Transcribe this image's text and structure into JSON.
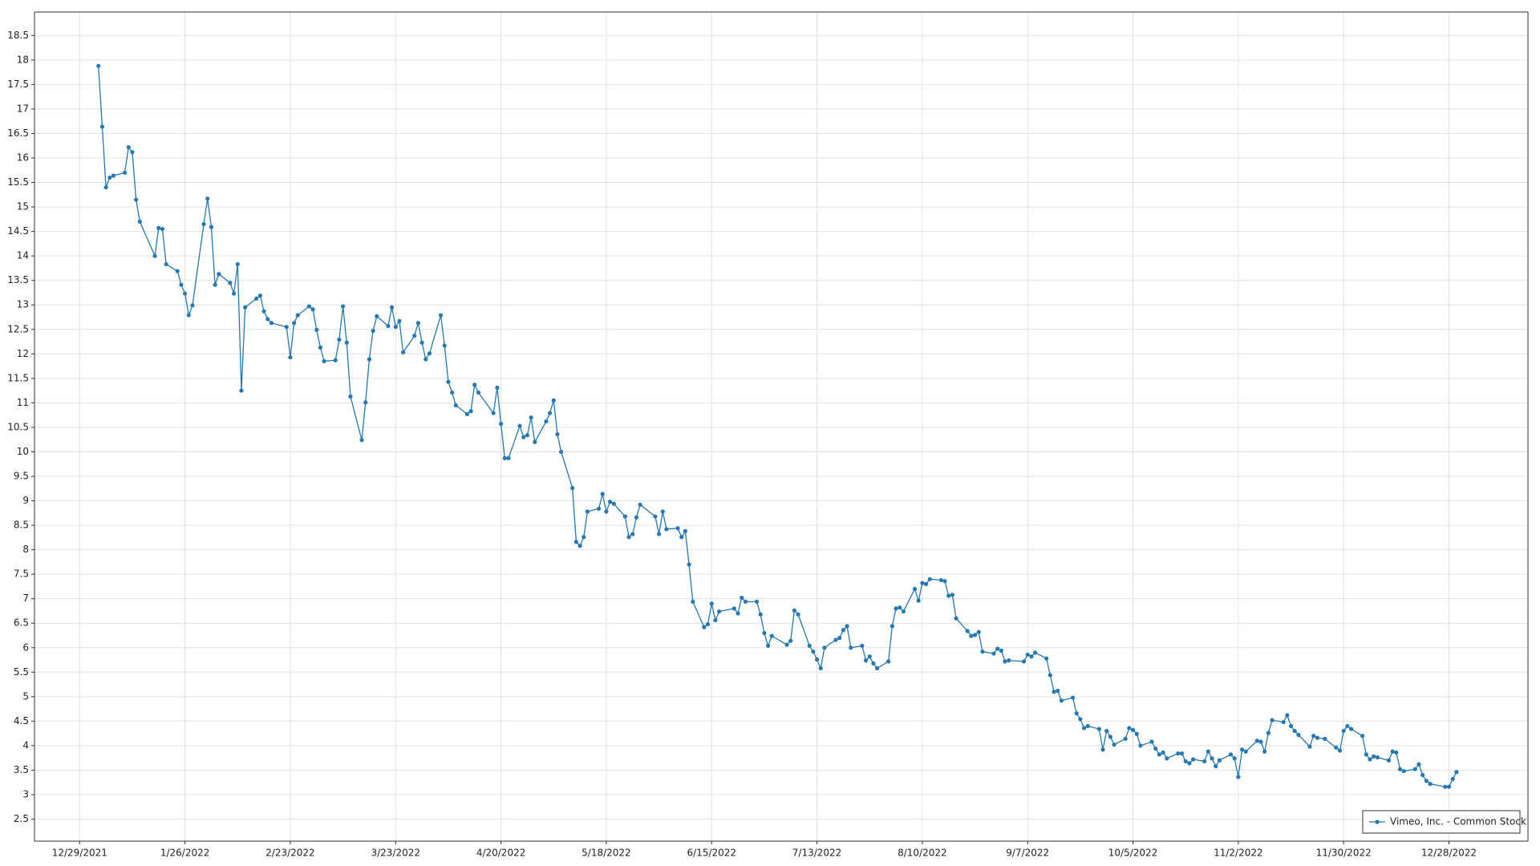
{
  "chart_data": {
    "type": "line",
    "x": [
      "1/3/2022",
      "1/4/2022",
      "1/5/2022",
      "1/6/2022",
      "1/7/2022",
      "1/10/2022",
      "1/11/2022",
      "1/12/2022",
      "1/13/2022",
      "1/14/2022",
      "1/18/2022",
      "1/19/2022",
      "1/20/2022",
      "1/21/2022",
      "1/24/2022",
      "1/25/2022",
      "1/26/2022",
      "1/27/2022",
      "1/28/2022",
      "1/31/2022",
      "2/1/2022",
      "2/2/2022",
      "2/3/2022",
      "2/4/2022",
      "2/7/2022",
      "2/8/2022",
      "2/9/2022",
      "2/10/2022",
      "2/11/2022",
      "2/14/2022",
      "2/15/2022",
      "2/16/2022",
      "2/17/2022",
      "2/18/2022",
      "2/22/2022",
      "2/23/2022",
      "2/24/2022",
      "2/25/2022",
      "2/28/2022",
      "3/1/2022",
      "3/2/2022",
      "3/3/2022",
      "3/4/2022",
      "3/7/2022",
      "3/8/2022",
      "3/9/2022",
      "3/10/2022",
      "3/11/2022",
      "3/14/2022",
      "3/15/2022",
      "3/16/2022",
      "3/17/2022",
      "3/18/2022",
      "3/21/2022",
      "3/22/2022",
      "3/23/2022",
      "3/24/2022",
      "3/25/2022",
      "3/28/2022",
      "3/29/2022",
      "3/30/2022",
      "3/31/2022",
      "4/1/2022",
      "4/4/2022",
      "4/5/2022",
      "4/6/2022",
      "4/7/2022",
      "4/8/2022",
      "4/11/2022",
      "4/12/2022",
      "4/13/2022",
      "4/14/2022",
      "4/18/2022",
      "4/19/2022",
      "4/20/2022",
      "4/21/2022",
      "4/22/2022",
      "4/25/2022",
      "4/26/2022",
      "4/27/2022",
      "4/28/2022",
      "4/29/2022",
      "5/2/2022",
      "5/3/2022",
      "5/4/2022",
      "5/5/2022",
      "5/6/2022",
      "5/9/2022",
      "5/10/2022",
      "5/11/2022",
      "5/12/2022",
      "5/13/2022",
      "5/16/2022",
      "5/17/2022",
      "5/18/2022",
      "5/19/2022",
      "5/20/2022",
      "5/23/2022",
      "5/24/2022",
      "5/25/2022",
      "5/26/2022",
      "5/27/2022",
      "5/31/2022",
      "6/1/2022",
      "6/2/2022",
      "6/3/2022",
      "6/6/2022",
      "6/7/2022",
      "6/8/2022",
      "6/9/2022",
      "6/10/2022",
      "6/13/2022",
      "6/14/2022",
      "6/15/2022",
      "6/16/2022",
      "6/17/2022",
      "6/21/2022",
      "6/22/2022",
      "6/23/2022",
      "6/24/2022",
      "6/27/2022",
      "6/28/2022",
      "6/29/2022",
      "6/30/2022",
      "7/1/2022",
      "7/5/2022",
      "7/6/2022",
      "7/7/2022",
      "7/8/2022",
      "7/11/2022",
      "7/12/2022",
      "7/13/2022",
      "7/14/2022",
      "7/15/2022",
      "7/18/2022",
      "7/19/2022",
      "7/20/2022",
      "7/21/2022",
      "7/22/2022",
      "7/25/2022",
      "7/26/2022",
      "7/27/2022",
      "7/28/2022",
      "7/29/2022",
      "8/1/2022",
      "8/2/2022",
      "8/3/2022",
      "8/4/2022",
      "8/5/2022",
      "8/8/2022",
      "8/9/2022",
      "8/10/2022",
      "8/11/2022",
      "8/12/2022",
      "8/15/2022",
      "8/16/2022",
      "8/17/2022",
      "8/18/2022",
      "8/19/2022",
      "8/22/2022",
      "8/23/2022",
      "8/24/2022",
      "8/25/2022",
      "8/26/2022",
      "8/29/2022",
      "8/30/2022",
      "8/31/2022",
      "9/1/2022",
      "9/2/2022",
      "9/6/2022",
      "9/7/2022",
      "9/8/2022",
      "9/9/2022",
      "9/12/2022",
      "9/13/2022",
      "9/14/2022",
      "9/15/2022",
      "9/16/2022",
      "9/19/2022",
      "9/20/2022",
      "9/21/2022",
      "9/22/2022",
      "9/23/2022",
      "9/26/2022",
      "9/27/2022",
      "9/28/2022",
      "9/29/2022",
      "9/30/2022",
      "10/3/2022",
      "10/4/2022",
      "10/5/2022",
      "10/6/2022",
      "10/7/2022",
      "10/10/2022",
      "10/11/2022",
      "10/12/2022",
      "10/13/2022",
      "10/14/2022",
      "10/17/2022",
      "10/18/2022",
      "10/19/2022",
      "10/20/2022",
      "10/21/2022",
      "10/24/2022",
      "10/25/2022",
      "10/26/2022",
      "10/27/2022",
      "10/28/2022",
      "10/31/2022",
      "11/1/2022",
      "11/2/2022",
      "11/3/2022",
      "11/4/2022",
      "11/7/2022",
      "11/8/2022",
      "11/9/2022",
      "11/10/2022",
      "11/11/2022",
      "11/14/2022",
      "11/15/2022",
      "11/16/2022",
      "11/17/2022",
      "11/18/2022",
      "11/21/2022",
      "11/22/2022",
      "11/23/2022",
      "11/25/2022",
      "11/28/2022",
      "11/29/2022",
      "11/30/2022",
      "12/1/2022",
      "12/2/2022",
      "12/5/2022",
      "12/6/2022",
      "12/7/2022",
      "12/8/2022",
      "12/9/2022",
      "12/12/2022",
      "12/13/2022",
      "12/14/2022",
      "12/15/2022",
      "12/16/2022",
      "12/19/2022",
      "12/20/2022",
      "12/21/2022",
      "12/22/2022",
      "12/23/2022",
      "12/27/2022",
      "12/28/2022",
      "12/29/2022",
      "12/30/2022"
    ],
    "series": [
      {
        "name": "Vimeo, Inc. - Common Stock",
        "color": "#2478b4",
        "values": [
          17.88,
          16.64,
          15.4,
          15.6,
          15.64,
          15.7,
          16.22,
          16.12,
          15.15,
          14.7,
          14.0,
          14.57,
          14.55,
          13.83,
          13.69,
          13.41,
          13.23,
          12.79,
          12.99,
          14.65,
          15.17,
          14.59,
          13.41,
          13.63,
          13.45,
          13.23,
          13.83,
          11.25,
          12.95,
          13.13,
          13.19,
          12.87,
          12.71,
          12.63,
          12.55,
          11.93,
          12.63,
          12.79,
          12.97,
          12.91,
          12.49,
          12.13,
          11.85,
          11.87,
          12.29,
          12.97,
          12.23,
          11.13,
          10.24,
          11.01,
          11.89,
          12.47,
          12.77,
          12.57,
          12.95,
          12.55,
          12.67,
          12.03,
          12.37,
          12.63,
          12.23,
          11.89,
          12.01,
          12.79,
          12.17,
          11.43,
          11.21,
          10.95,
          10.77,
          10.83,
          11.37,
          11.21,
          10.79,
          11.31,
          10.57,
          9.87,
          9.87,
          10.53,
          10.3,
          10.34,
          10.7,
          10.2,
          10.62,
          10.79,
          11.05,
          10.36,
          10.0,
          9.26,
          8.16,
          8.08,
          8.26,
          8.78,
          8.84,
          9.14,
          8.78,
          8.98,
          8.94,
          8.68,
          8.26,
          8.32,
          8.66,
          8.92,
          8.68,
          8.32,
          8.78,
          8.42,
          8.44,
          8.26,
          8.38,
          7.7,
          6.94,
          6.42,
          6.48,
          6.9,
          6.56,
          6.74,
          6.8,
          6.7,
          7.02,
          6.94,
          6.94,
          6.68,
          6.3,
          6.04,
          6.24,
          6.06,
          6.14,
          6.76,
          6.68,
          6.04,
          5.92,
          5.76,
          5.58,
          6.0,
          6.16,
          6.2,
          6.36,
          6.44,
          6.0,
          6.04,
          5.74,
          5.82,
          5.68,
          5.58,
          5.72,
          6.44,
          6.8,
          6.82,
          6.74,
          7.2,
          6.96,
          7.32,
          7.3,
          7.4,
          7.38,
          7.36,
          7.06,
          7.08,
          6.6,
          6.34,
          6.24,
          6.26,
          6.32,
          5.92,
          5.88,
          5.98,
          5.94,
          5.72,
          5.74,
          5.72,
          5.86,
          5.82,
          5.9,
          5.78,
          5.44,
          5.1,
          5.12,
          4.92,
          4.98,
          4.66,
          4.54,
          4.36,
          4.4,
          4.34,
          3.92,
          4.3,
          4.18,
          4.02,
          4.14,
          4.36,
          4.32,
          4.24,
          4.0,
          4.08,
          3.94,
          3.82,
          3.86,
          3.74,
          3.84,
          3.84,
          3.68,
          3.64,
          3.72,
          3.68,
          3.88,
          3.74,
          3.58,
          3.7,
          3.82,
          3.74,
          3.36,
          3.92,
          3.88,
          4.1,
          4.08,
          3.88,
          4.26,
          4.52,
          4.48,
          4.62,
          4.4,
          4.3,
          4.22,
          3.98,
          4.2,
          4.16,
          4.14,
          3.96,
          3.9,
          4.3,
          4.4,
          4.34,
          4.2,
          3.82,
          3.72,
          3.78,
          3.76,
          3.7,
          3.88,
          3.86,
          3.52,
          3.48,
          3.52,
          3.62,
          3.4,
          3.28,
          3.22,
          3.16,
          3.16,
          3.32,
          3.46
        ]
      }
    ],
    "xlim": [
      "12/17/2021",
      "1/18/2023"
    ],
    "xticks": [
      "12/29/2021",
      "1/26/2022",
      "2/23/2022",
      "3/23/2022",
      "4/20/2022",
      "5/18/2022",
      "6/15/2022",
      "7/13/2022",
      "8/10/2022",
      "9/7/2022",
      "10/5/2022",
      "11/2/2022",
      "11/30/2022",
      "12/28/2022"
    ],
    "ylim": [
      2.05,
      18.98
    ],
    "yticks": [
      2.5,
      3,
      3.5,
      4,
      4.5,
      5,
      5.5,
      6,
      6.5,
      7,
      7.5,
      8,
      8.5,
      9,
      9.5,
      10,
      10.5,
      11,
      11.5,
      12,
      12.5,
      13,
      13.5,
      14,
      14.5,
      15,
      15.5,
      16,
      16.5,
      17,
      17.5,
      18,
      18.5
    ],
    "grid": true,
    "legend": "bottom-right"
  }
}
